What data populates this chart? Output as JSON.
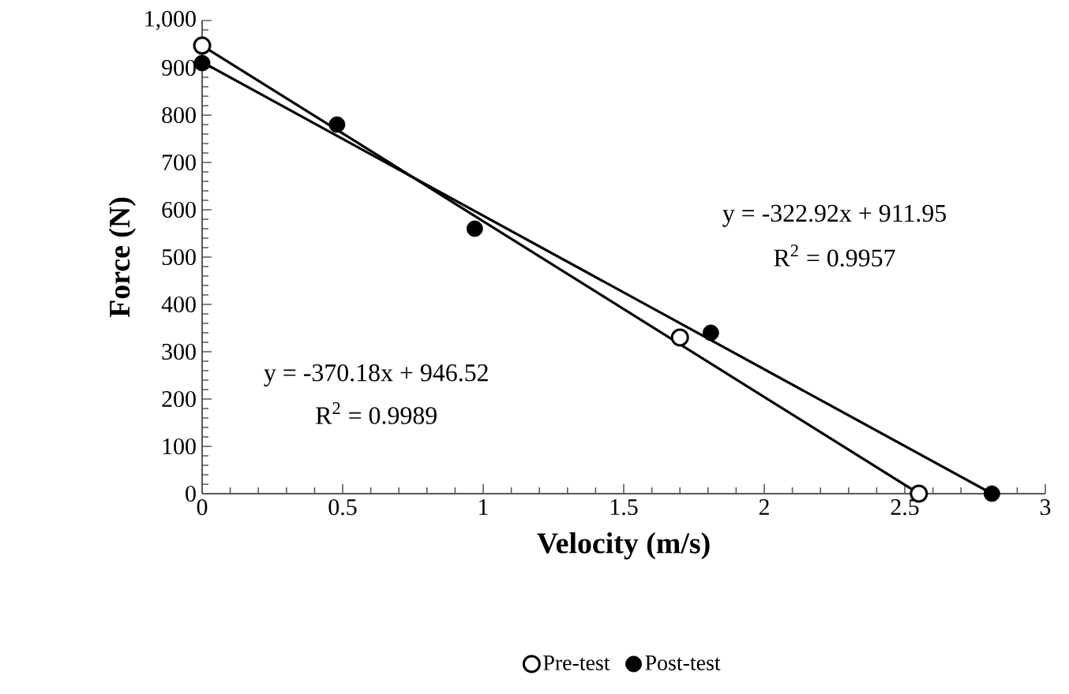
{
  "chart_data": {
    "type": "scatter",
    "xlabel": "Velocity (m/s)",
    "ylabel": "Force (N)",
    "xlim": [
      0,
      3
    ],
    "ylim": [
      0,
      1000
    ],
    "xticks": [
      0,
      0.5,
      1,
      1.5,
      2,
      2.5,
      3
    ],
    "yticks": [
      0,
      100,
      200,
      300,
      400,
      500,
      600,
      700,
      800,
      900,
      {
        "value": 1000,
        "label": "1,000"
      }
    ],
    "marker": "circle",
    "legend": "bottom",
    "series": [
      {
        "name": "Pre-test",
        "color": "#000000",
        "x": [
          0,
          1.7,
          2.55
        ],
        "values": [
          947,
          330,
          0
        ]
      },
      {
        "name": "Post-test",
        "color": "#000000",
        "x": [
          0,
          0.48,
          0.97,
          1.81,
          2.81
        ],
        "values": [
          910,
          780,
          560,
          340,
          0
        ]
      },
      {
        "type": "line",
        "marker": "none",
        "color": "#000000",
        "x": [
          0,
          2.55
        ],
        "values": [
          947,
          0
        ]
      },
      {
        "type": "line",
        "marker": "none",
        "color": "#000000",
        "x": [
          0,
          2.81
        ],
        "values": [
          912,
          0
        ]
      }
    ],
    "annotations": [
      "y = -322.92x + 911.95",
      "R$^{2}$ = 0.9957",
      "y = -370.18x + 946.52",
      "R$^{2}$ = 0.9989"
    ]
  }
}
